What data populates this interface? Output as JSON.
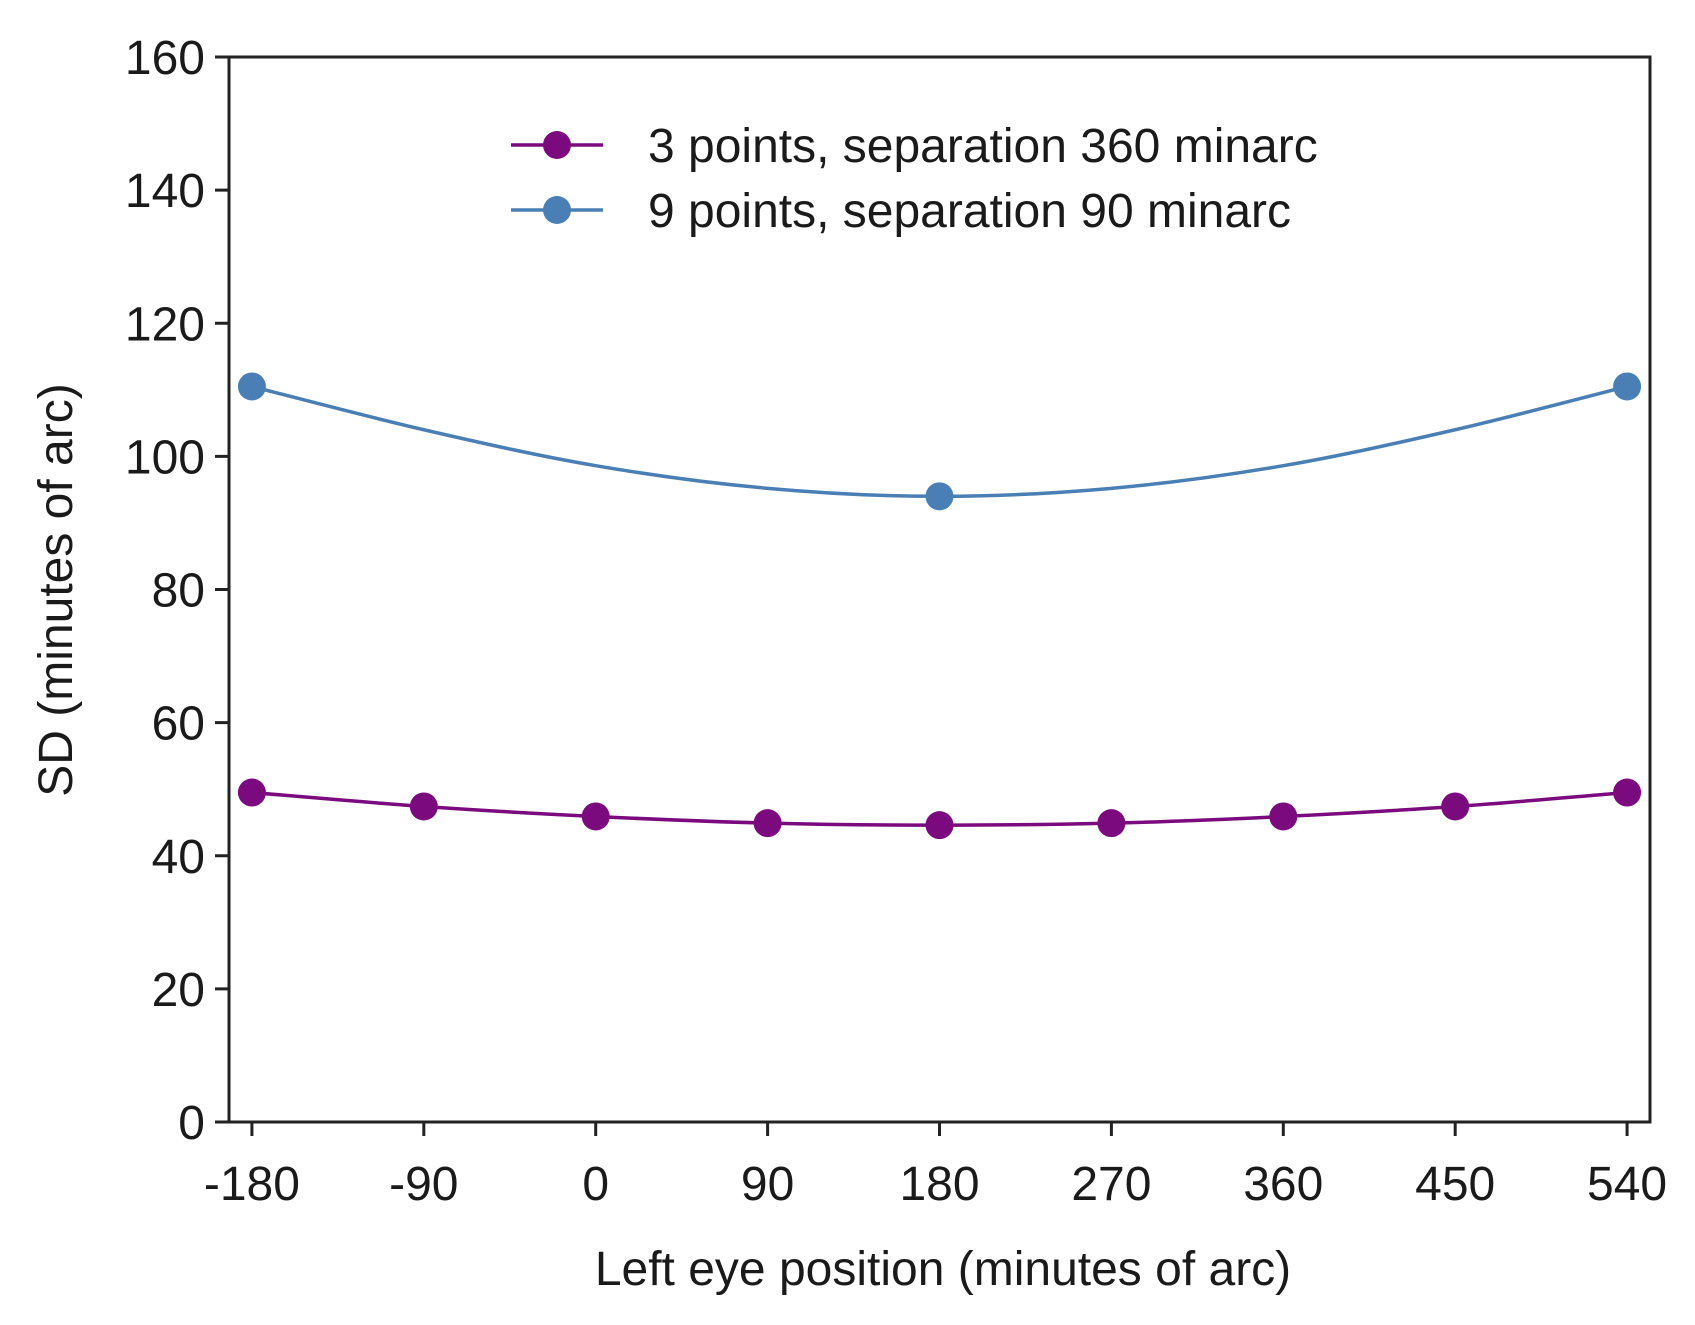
{
  "chart_data": {
    "type": "line",
    "title": "",
    "xlabel": "Left eye position (minutes of arc)",
    "ylabel": "SD (minutes of arc)",
    "xlim": [
      -192,
      552
    ],
    "ylim": [
      0,
      160
    ],
    "xticks": [
      -180,
      -90,
      0,
      90,
      180,
      270,
      360,
      450,
      540
    ],
    "xtick_labels": [
      "-180",
      "-90",
      "0",
      "90",
      "180",
      "270",
      "360",
      "450",
      "540"
    ],
    "yticks": [
      0,
      20,
      40,
      60,
      80,
      100,
      120,
      140,
      160
    ],
    "ytick_labels": [
      "0",
      "20",
      "40",
      "60",
      "80",
      "100",
      "120",
      "140",
      "160"
    ],
    "grid": false,
    "legend_position": "top-center",
    "series": [
      {
        "name": "3 points, separation 360 minarc",
        "color": "#7b0a7e",
        "points": [
          {
            "x": -180,
            "y": 49.5
          },
          {
            "x": -90,
            "y": 47.4
          },
          {
            "x": 0,
            "y": 45.9
          },
          {
            "x": 90,
            "y": 44.9
          },
          {
            "x": 180,
            "y": 44.6
          },
          {
            "x": 270,
            "y": 44.9
          },
          {
            "x": 360,
            "y": 45.9
          },
          {
            "x": 450,
            "y": 47.4
          },
          {
            "x": 540,
            "y": 49.5
          }
        ],
        "curve": [
          {
            "x": -180,
            "y": 49.5
          },
          {
            "x": -90,
            "y": 47.4
          },
          {
            "x": 0,
            "y": 45.9
          },
          {
            "x": 90,
            "y": 44.9
          },
          {
            "x": 180,
            "y": 44.6
          },
          {
            "x": 270,
            "y": 44.9
          },
          {
            "x": 360,
            "y": 45.9
          },
          {
            "x": 450,
            "y": 47.4
          },
          {
            "x": 540,
            "y": 49.5
          }
        ]
      },
      {
        "name": "9 points, separation 90 minarc",
        "color": "#4a7fb5",
        "points": [
          {
            "x": -180,
            "y": 110.5
          },
          {
            "x": 180,
            "y": 94.0
          },
          {
            "x": 540,
            "y": 110.5
          }
        ],
        "curve": [
          {
            "x": -180,
            "y": 110.5
          },
          {
            "x": -90,
            "y": 104.0
          },
          {
            "x": 0,
            "y": 98.6
          },
          {
            "x": 90,
            "y": 95.2
          },
          {
            "x": 180,
            "y": 94.0
          },
          {
            "x": 270,
            "y": 95.2
          },
          {
            "x": 360,
            "y": 98.6
          },
          {
            "x": 450,
            "y": 104.0
          },
          {
            "x": 540,
            "y": 110.5
          }
        ]
      }
    ]
  }
}
